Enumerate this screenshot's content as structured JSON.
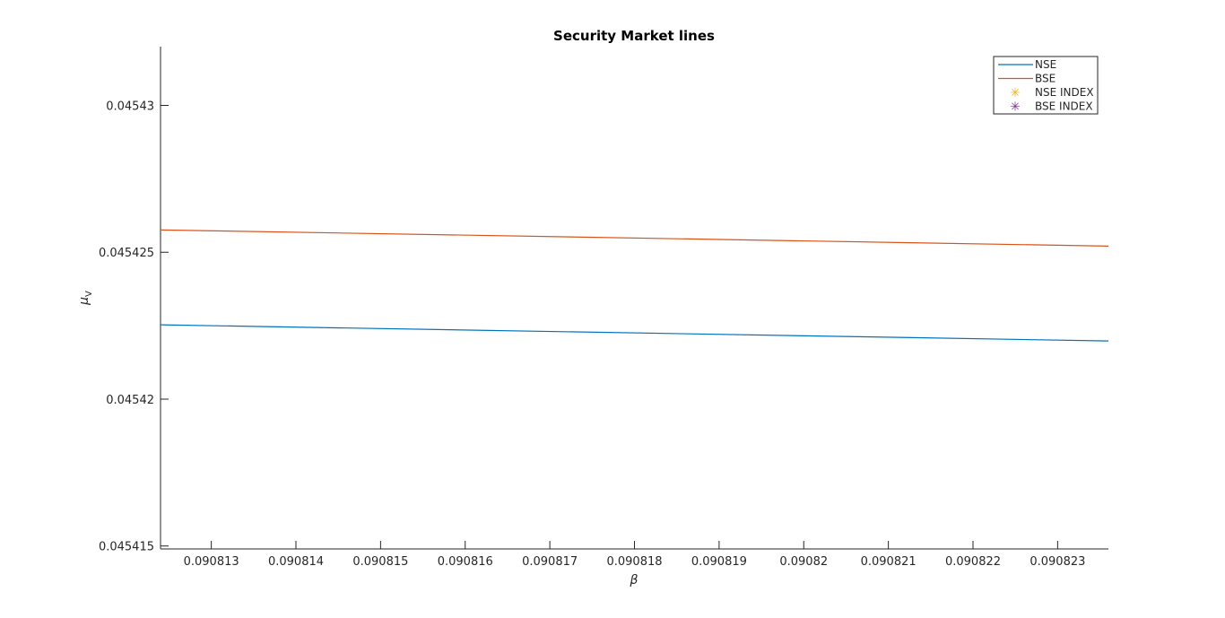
{
  "chart_data": {
    "type": "line",
    "title": "Security Market lines",
    "xlabel": "β",
    "ylabel": "μ",
    "ylabel_sub": "V",
    "xlim": [
      0.0908124,
      0.0908236
    ],
    "ylim": [
      0.0454149,
      0.045432
    ],
    "xticks": [
      0.090813,
      0.090814,
      0.090815,
      0.090816,
      0.090817,
      0.090818,
      0.090819,
      0.09082,
      0.090821,
      0.090822,
      0.090823
    ],
    "xtick_labels": [
      "0.090813",
      "0.090814",
      "0.090815",
      "0.090816",
      "0.090817",
      "0.090818",
      "0.090819",
      "0.09082",
      "0.090821",
      "0.090822",
      "0.090823"
    ],
    "yticks": [
      0.045415,
      0.04542,
      0.045425,
      0.04543
    ],
    "ytick_labels": [
      "0.045415",
      "0.04542",
      "0.045425",
      "0.04543"
    ],
    "grid": false,
    "legend_position": "top-right",
    "series": [
      {
        "name": "NSE",
        "kind": "line",
        "color": "#0072BD",
        "x": [
          0.0908124,
          0.0908236
        ],
        "y": [
          0.04542253,
          0.04542198
        ]
      },
      {
        "name": "BSE",
        "kind": "line",
        "color": "#D95319",
        "x": [
          0.0908124,
          0.0908236
        ],
        "y": [
          0.04542576,
          0.04542521
        ]
      },
      {
        "name": "NSE INDEX",
        "kind": "marker",
        "marker": "*",
        "color": "#EDB120",
        "x": [],
        "y": []
      },
      {
        "name": "BSE INDEX",
        "kind": "marker",
        "marker": "*",
        "color": "#7E2F8E",
        "x": [],
        "y": []
      }
    ]
  }
}
